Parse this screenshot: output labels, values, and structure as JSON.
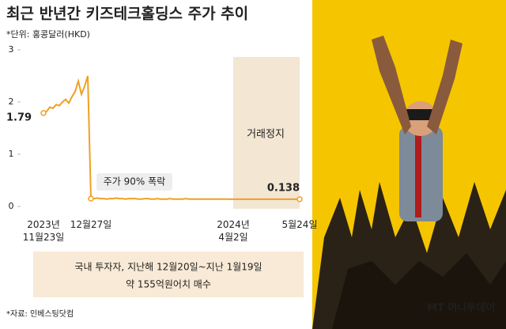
{
  "chart_data": {
    "type": "line",
    "title": "최근 반년간 키즈테크홀딩스 주가 추이",
    "subtitle": "*단위: 홍콩달러(HKD)",
    "categories": [
      "2023년\n11월23일",
      null,
      null,
      null,
      null,
      null,
      null,
      null,
      null,
      null,
      null,
      null,
      null,
      null,
      null,
      "12월27일",
      null,
      null,
      null,
      null,
      null,
      null,
      null,
      null,
      null,
      null,
      null,
      null,
      null,
      null,
      null,
      null,
      null,
      null,
      null,
      null,
      null,
      null,
      null,
      null,
      null,
      null,
      null,
      null,
      null,
      null,
      null,
      null,
      null,
      null,
      null,
      null,
      null,
      null,
      null,
      null,
      null,
      null,
      null,
      null,
      "2024년\n4월2일",
      null,
      null,
      null,
      null,
      null,
      null,
      null,
      null,
      null,
      null,
      null,
      null,
      null,
      null,
      null,
      null,
      null,
      null,
      null,
      null,
      "5월24일"
    ],
    "series": [
      {
        "color": "#f0a020",
        "values": [
          1.79,
          1.82,
          1.9,
          1.88,
          1.95,
          1.93,
          2.0,
          2.05,
          1.98,
          2.1,
          2.2,
          2.4,
          2.15,
          2.3,
          2.5,
          0.15,
          0.15,
          0.16,
          0.15,
          0.15,
          0.14,
          0.15,
          0.15,
          0.16,
          0.15,
          0.15,
          0.14,
          0.15,
          0.15,
          0.15,
          0.14,
          0.14,
          0.15,
          0.15,
          0.14,
          0.14,
          0.15,
          0.14,
          0.14,
          0.14,
          0.15,
          0.14,
          0.14,
          0.14,
          0.14,
          0.15,
          0.14,
          0.14,
          0.14,
          0.14,
          0.14,
          0.14,
          0.14,
          0.14,
          0.14,
          0.14,
          0.14,
          0.14,
          0.14,
          0.138,
          0.138,
          0.138,
          0.138,
          0.138,
          0.138,
          0.138,
          0.138,
          0.138,
          0.138,
          0.138,
          0.138,
          0.138,
          0.138,
          0.138,
          0.138,
          0.138,
          0.138,
          0.138,
          0.138,
          0.138,
          0.138,
          0.138
        ]
      }
    ],
    "ylim": [
      0,
      3
    ],
    "yticks": [
      0,
      1,
      2,
      3
    ],
    "grid": false,
    "annotations": {
      "crash": "주가 90% 폭락",
      "halt": "거래정지"
    },
    "note_box": [
      "국내 투자자, 지난해 12월20일~지난 1월19일",
      "약 155억원어치 매수"
    ],
    "source": "*자료: 인베스팅닷컴",
    "watermark": "MT 머니투데이"
  }
}
